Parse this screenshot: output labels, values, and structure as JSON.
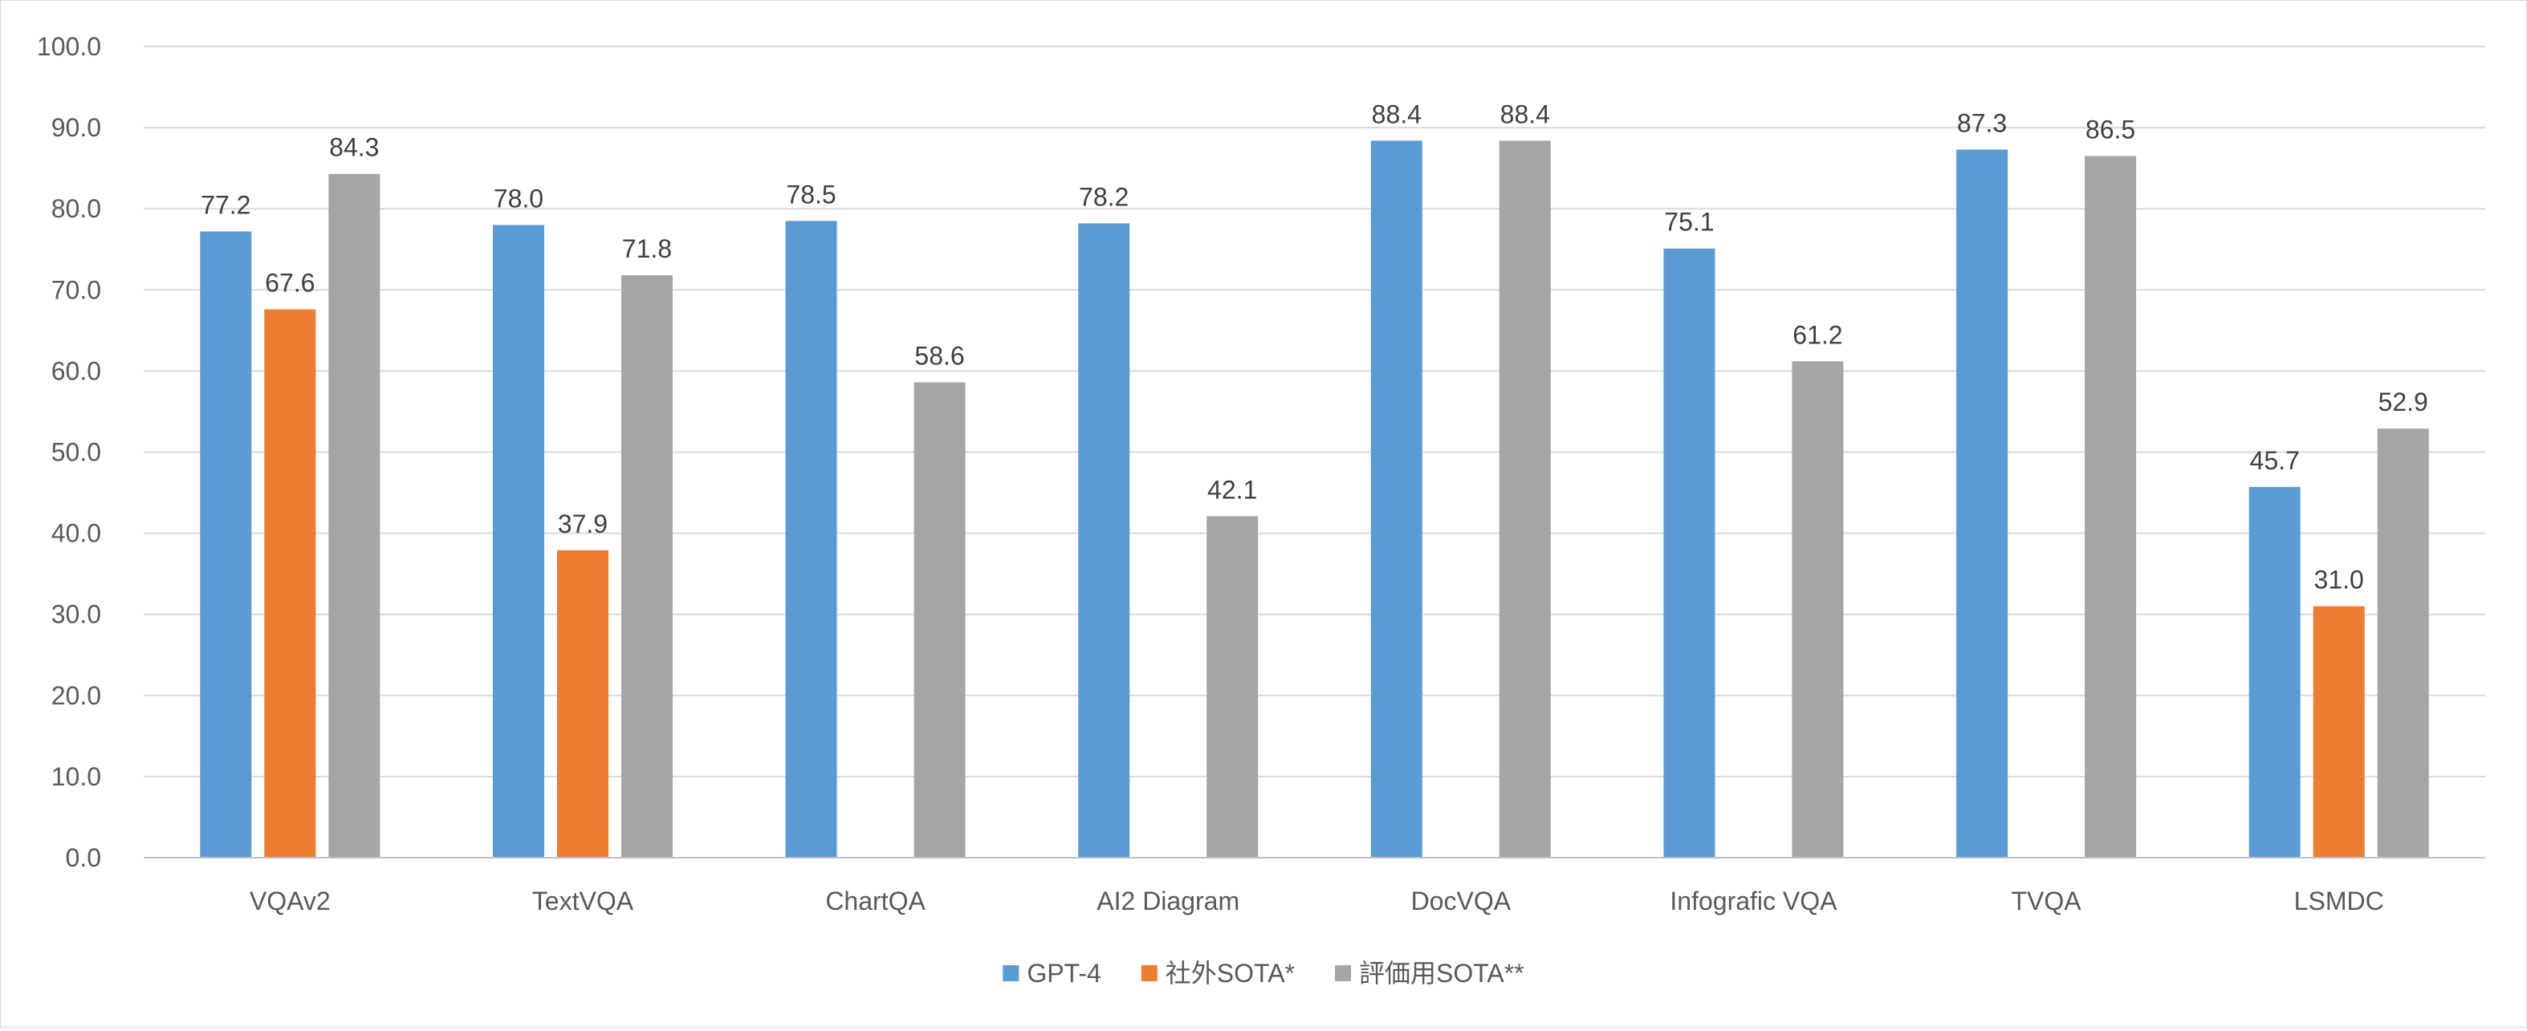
{
  "chart_data": {
    "type": "bar",
    "title": "",
    "xlabel": "",
    "ylabel": "",
    "ylim": [
      0,
      100
    ],
    "yticks": [
      0,
      10,
      20,
      30,
      40,
      50,
      60,
      70,
      80,
      90,
      100
    ],
    "ytick_format": "0.0",
    "grid": true,
    "legend_position": "bottom",
    "categories": [
      "VQAv2",
      "TextVQA",
      "ChartQA",
      "AI2 Diagram",
      "DocVQA",
      "Infografic VQA",
      "TVQA",
      "LSMDC"
    ],
    "series": [
      {
        "name": "GPT-4",
        "color": "#5B9BD5",
        "values": [
          77.2,
          78.0,
          78.5,
          78.2,
          88.4,
          75.1,
          87.3,
          45.7
        ]
      },
      {
        "name": "社外SOTA*",
        "color": "#ED7D31",
        "values": [
          67.6,
          37.9,
          null,
          null,
          null,
          null,
          null,
          31.0
        ]
      },
      {
        "name": "評価用SOTA**",
        "color": "#A5A5A5",
        "values": [
          84.3,
          71.8,
          58.6,
          42.1,
          88.4,
          61.2,
          86.5,
          52.9
        ]
      }
    ]
  }
}
